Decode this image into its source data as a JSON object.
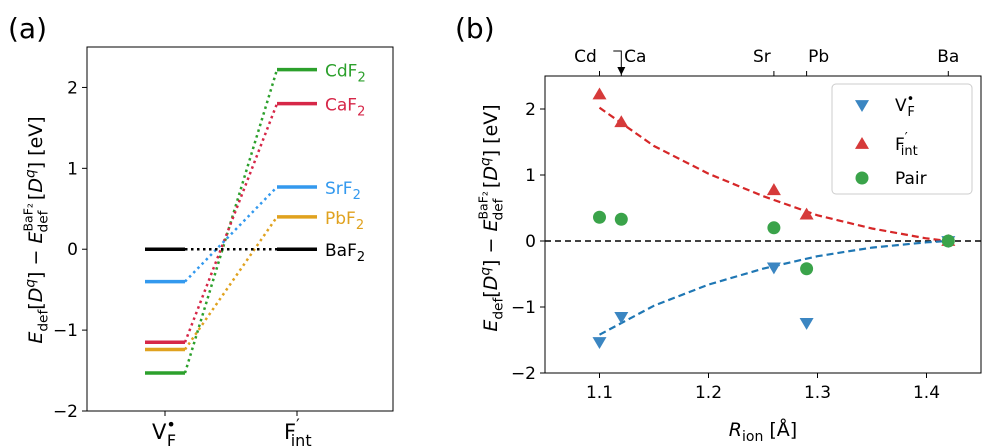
{
  "chart_data": [
    {
      "panel_label": "(a)",
      "type": "line",
      "ylabel": "E_def[D^q] − E_def^BaF2[D^q] [eV]",
      "ylim": [
        -2,
        2.5
      ],
      "yticks": [
        "−2",
        "−1",
        "0",
        "1",
        "2"
      ],
      "categories": [
        {
          "base": "V",
          "sup": "•",
          "sub": "F"
        },
        {
          "base": "F",
          "sup": "′",
          "sub": "int"
        }
      ],
      "series": [
        {
          "name": "CdF2",
          "label": {
            "base": "CdF",
            "sub": "2"
          },
          "color": "#2ca02c",
          "values": [
            -1.53,
            2.22
          ]
        },
        {
          "name": "CaF2",
          "label": {
            "base": "CaF",
            "sub": "2"
          },
          "color": "#d62748",
          "values": [
            -1.15,
            1.8
          ]
        },
        {
          "name": "SrF2",
          "label": {
            "base": "SrF",
            "sub": "2"
          },
          "color": "#3399ee",
          "values": [
            -0.4,
            0.77
          ]
        },
        {
          "name": "PbF2",
          "label": {
            "base": "PbF",
            "sub": "2"
          },
          "color": "#e0a21f",
          "values": [
            -1.24,
            0.4
          ]
        },
        {
          "name": "BaF2",
          "label": {
            "base": "BaF",
            "sub": "2"
          },
          "color": "#000000",
          "values": [
            0.0,
            0.0
          ]
        }
      ]
    },
    {
      "panel_label": "(b)",
      "type": "scatter",
      "xlabel": "R_ion [Å]",
      "ylabel": "E_def[D^q] − E_def^BaF2[D^q] [eV]",
      "xlim": [
        1.05,
        1.45
      ],
      "ylim": [
        -2,
        2.5
      ],
      "xticks": [
        "1.1",
        "1.2",
        "1.3",
        "1.4"
      ],
      "yticks": [
        "−2",
        "−1",
        "0",
        "1",
        "2"
      ],
      "top_axis": {
        "labels": [
          {
            "text": "Cd",
            "x": 1.1
          },
          {
            "text": "Ca",
            "x": 1.12
          },
          {
            "text": "Sr",
            "x": 1.26
          },
          {
            "text": "Pb",
            "x": 1.29
          },
          {
            "text": "Ba",
            "x": 1.42
          }
        ],
        "arrow_at": 1.12
      },
      "zero_line": true,
      "legend": "top-right",
      "series": [
        {
          "name": "V_F^•",
          "label": {
            "base": "V",
            "sup": "•",
            "sub": "F"
          },
          "marker": "triangle-down",
          "color": "#3b86c2",
          "x": [
            1.1,
            1.12,
            1.26,
            1.29,
            1.42
          ],
          "y": [
            -1.53,
            -1.15,
            -0.4,
            -1.24,
            0.0
          ]
        },
        {
          "name": "F_int′",
          "label": {
            "base": "F",
            "sup": "′",
            "sub": "int"
          },
          "marker": "triangle-up",
          "color": "#d63a3a",
          "x": [
            1.1,
            1.12,
            1.26,
            1.29,
            1.42
          ],
          "y": [
            2.22,
            1.8,
            0.77,
            0.4,
            0.0
          ]
        },
        {
          "name": "Pair",
          "label": {
            "base": "Pair"
          },
          "marker": "circle",
          "color": "#3aa34a",
          "x": [
            1.1,
            1.12,
            1.26,
            1.29,
            1.42
          ],
          "y": [
            0.36,
            0.33,
            0.2,
            -0.42,
            0.0
          ]
        }
      ],
      "fits": [
        {
          "color": "#d62728",
          "x": [
            1.1,
            1.15,
            1.2,
            1.25,
            1.3,
            1.35,
            1.4,
            1.42
          ],
          "y": [
            2.02,
            1.44,
            1.02,
            0.68,
            0.39,
            0.19,
            0.04,
            0.0
          ]
        },
        {
          "color": "#1f77b4",
          "x": [
            1.1,
            1.15,
            1.2,
            1.25,
            1.3,
            1.35,
            1.4,
            1.42
          ],
          "y": [
            -1.42,
            -0.98,
            -0.66,
            -0.42,
            -0.23,
            -0.1,
            -0.02,
            0.0
          ]
        }
      ]
    }
  ]
}
